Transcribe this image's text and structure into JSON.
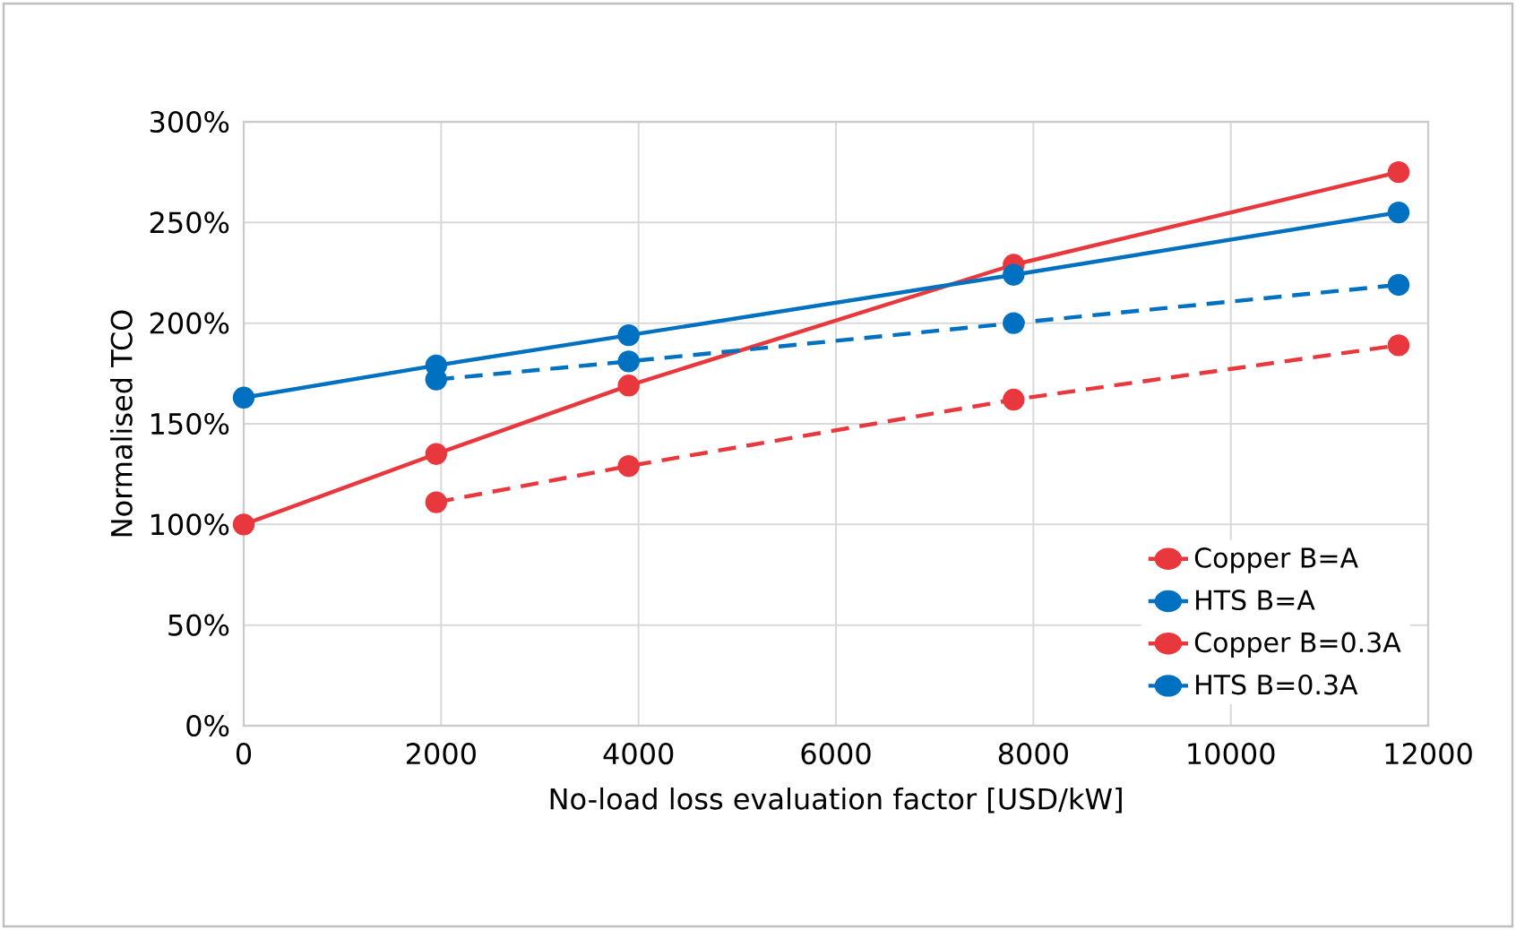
{
  "chart_data": {
    "type": "line",
    "xlabel": "No-load loss evaluation factor [USD/kW]",
    "ylabel": "Normalised TCO",
    "xlim": [
      0,
      12000
    ],
    "xticks": [
      0,
      2000,
      4000,
      6000,
      8000,
      10000,
      12000
    ],
    "ylim": [
      0,
      300
    ],
    "yticks": [
      {
        "value": 0,
        "label": "0%"
      },
      {
        "value": 50,
        "label": "50%"
      },
      {
        "value": 100,
        "label": "100%"
      },
      {
        "value": 150,
        "label": "150%"
      },
      {
        "value": 200,
        "label": "200%"
      },
      {
        "value": 250,
        "label": "250%"
      },
      {
        "value": 300,
        "label": "300%"
      }
    ],
    "grid": true,
    "legend": "bottom right",
    "marker": "circle",
    "series": [
      {
        "name": "Copper B=A",
        "color": "#e8383d",
        "line_style": "solid",
        "x": [
          0,
          1950,
          3900,
          7800,
          11700
        ],
        "values": [
          100,
          135,
          169,
          229,
          275
        ]
      },
      {
        "name": "HTS B=A",
        "color": "#0070c0",
        "line_style": "solid",
        "x": [
          0,
          1950,
          3900,
          7800,
          11700
        ],
        "values": [
          163,
          179,
          194,
          224,
          255
        ]
      },
      {
        "name": "Copper B=0.3A",
        "color": "#e8383d",
        "line_style": "dashed",
        "x": [
          1950,
          3900,
          7800,
          11700
        ],
        "values": [
          111,
          129,
          162,
          189
        ]
      },
      {
        "name": "HTS B=0.3A",
        "color": "#0070c0",
        "line_style": "dashed",
        "x": [
          1950,
          3900,
          7800,
          11700
        ],
        "values": [
          172,
          181,
          200,
          219
        ]
      }
    ]
  }
}
